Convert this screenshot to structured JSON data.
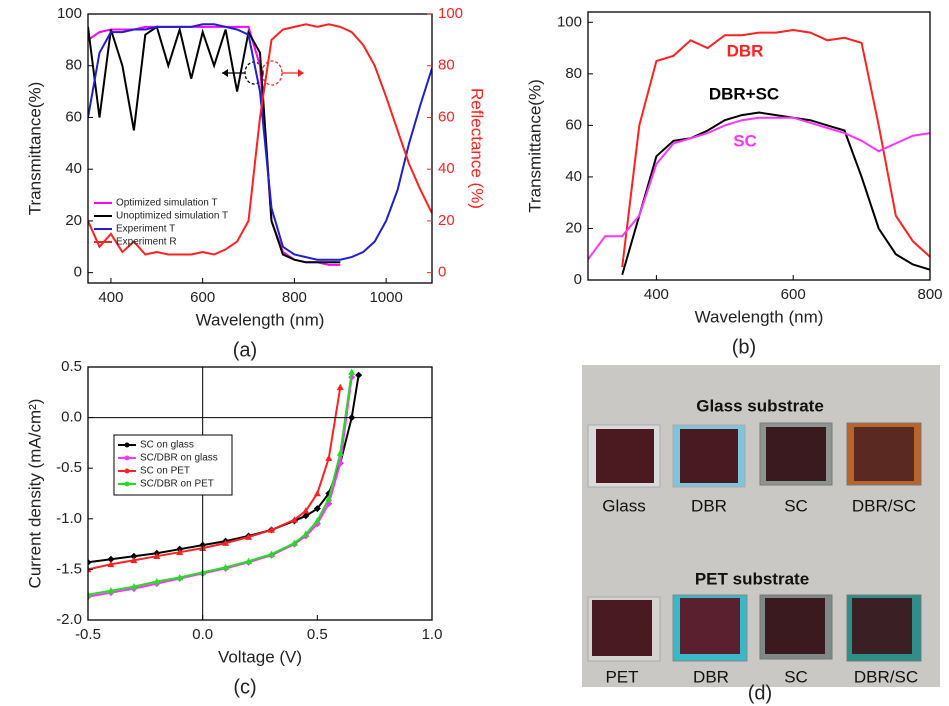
{
  "chart_data": [
    {
      "type": "line",
      "panel_label": "(a)",
      "x_label": "Wavelength (nm)",
      "y_label": "Transmittance(%)",
      "y2_label": "Reflectance (%)",
      "x": [
        350,
        375,
        400,
        425,
        450,
        475,
        500,
        525,
        550,
        575,
        600,
        625,
        650,
        675,
        700,
        725,
        750,
        775,
        800,
        825,
        850,
        875,
        900,
        925,
        950,
        975,
        1000,
        1025,
        1050,
        1075,
        1100
      ],
      "series": [
        {
          "name": "Optimized simulation T",
          "color": "#ff00ff",
          "values": [
            90,
            93,
            94,
            94,
            94,
            95,
            95,
            95,
            95,
            95,
            95,
            95,
            95,
            95,
            95,
            80,
            20,
            8,
            5,
            4,
            4,
            3,
            3,
            null,
            null,
            null,
            null,
            null,
            null,
            null,
            null
          ]
        },
        {
          "name": "Unoptimized simulation T",
          "color": "#000000",
          "values": [
            95,
            60,
            94,
            80,
            55,
            92,
            95,
            80,
            94,
            75,
            93,
            80,
            94,
            70,
            93,
            85,
            20,
            7,
            5,
            4,
            4,
            4,
            4,
            null,
            null,
            null,
            null,
            null,
            null,
            null,
            null
          ]
        },
        {
          "name": "Experiment T",
          "color": "#1f1fcf",
          "values": [
            60,
            85,
            93,
            93,
            94,
            94,
            95,
            95,
            95,
            95,
            96,
            96,
            95,
            94,
            92,
            70,
            25,
            10,
            7,
            6,
            5,
            5,
            5,
            6,
            8,
            12,
            20,
            32,
            50,
            65,
            79
          ]
        },
        {
          "name": "Experiment R",
          "color": "#ff2020",
          "axis": "y2",
          "values": [
            20,
            10,
            15,
            8,
            12,
            7,
            8,
            7,
            7,
            7,
            8,
            7,
            9,
            12,
            20,
            60,
            90,
            94,
            95,
            96,
            95,
            96,
            95,
            93,
            88,
            80,
            68,
            55,
            42,
            32,
            23
          ]
        }
      ],
      "xlim": [
        350,
        1100
      ],
      "xticks": [
        400,
        600,
        800,
        1000
      ],
      "ylim": [
        -4,
        100
      ],
      "yticks": [
        0,
        20,
        40,
        60,
        80,
        100
      ],
      "y2lim": [
        -4,
        100
      ],
      "y2ticks": [
        0,
        20,
        40,
        60,
        80,
        100
      ],
      "legend": "lower left"
    },
    {
      "type": "line",
      "panel_label": "(b)",
      "x_label": "Wavelength (nm)",
      "y_label": "Transmittance(%)",
      "x": [
        300,
        325,
        350,
        375,
        400,
        425,
        450,
        475,
        500,
        525,
        550,
        575,
        600,
        625,
        650,
        675,
        700,
        725,
        750,
        775,
        800
      ],
      "series": [
        {
          "name": "DBR",
          "color": "#ff2020",
          "values": [
            null,
            null,
            5,
            60,
            85,
            87,
            93,
            90,
            95,
            95,
            96,
            96,
            97,
            96,
            93,
            94,
            92,
            60,
            25,
            15,
            9
          ]
        },
        {
          "name": "DBR+SC",
          "color": "#000000",
          "values": [
            null,
            null,
            2,
            25,
            48,
            54,
            55,
            58,
            62,
            64,
            65,
            64,
            63,
            62,
            60,
            58,
            40,
            20,
            10,
            6,
            4
          ]
        },
        {
          "name": "SC",
          "color": "#ff33ff",
          "values": [
            8,
            17,
            17,
            25,
            45,
            53,
            55,
            57,
            60,
            62,
            63,
            63,
            63,
            61,
            59,
            57,
            54,
            50,
            53,
            56,
            57
          ]
        }
      ],
      "xlim": [
        300,
        800
      ],
      "xticks": [
        400,
        600,
        800
      ],
      "ylim": [
        0,
        104
      ],
      "yticks": [
        0,
        20,
        40,
        60,
        80,
        100
      ],
      "annotations": "series-names"
    },
    {
      "type": "line",
      "panel_label": "(c)",
      "x_label": "Voltage (V)",
      "y_label": "Current density (mA/cm²)",
      "x": [
        -0.5,
        -0.4,
        -0.3,
        -0.2,
        -0.1,
        0,
        0.1,
        0.2,
        0.3,
        0.4,
        0.45,
        0.5,
        0.55,
        0.6,
        0.65,
        0.68
      ],
      "series": [
        {
          "name": "SC on glass",
          "color": "#000000",
          "marker": "diamond",
          "values": [
            -1.43,
            -1.4,
            -1.37,
            -1.34,
            -1.3,
            -1.26,
            -1.22,
            -1.17,
            -1.11,
            -1.02,
            -0.97,
            -0.9,
            -0.75,
            -0.45,
            0.0,
            0.42
          ]
        },
        {
          "name": "SC/DBR on glass",
          "color": "#ff33ff",
          "marker": "diamond",
          "values": [
            -1.77,
            -1.73,
            -1.69,
            -1.64,
            -1.59,
            -1.54,
            -1.49,
            -1.43,
            -1.36,
            -1.25,
            -1.17,
            -1.05,
            -0.85,
            -0.45,
            0.4,
            null
          ]
        },
        {
          "name": "SC on PET",
          "color": "#ff2020",
          "marker": "triangle",
          "values": [
            -1.5,
            -1.45,
            -1.41,
            -1.37,
            -1.33,
            -1.29,
            -1.24,
            -1.18,
            -1.11,
            -1.01,
            -0.92,
            -0.75,
            -0.4,
            0.3,
            null,
            null
          ]
        },
        {
          "name": "SC/DBR on PET",
          "color": "#22dd22",
          "marker": "triangle",
          "values": [
            -1.75,
            -1.71,
            -1.67,
            -1.62,
            -1.58,
            -1.53,
            -1.48,
            -1.42,
            -1.35,
            -1.24,
            -1.15,
            -1.02,
            -0.8,
            -0.35,
            0.45,
            null
          ]
        }
      ],
      "xlim": [
        -0.5,
        1.0
      ],
      "xticks": [
        -0.5,
        {
          "value": 0,
          "label": "0.0"
        },
        0.5,
        {
          "value": 1,
          "label": "1.0"
        }
      ],
      "ylim": [
        -2,
        0.5
      ],
      "yticks": [
        0.5,
        {
          "value": 0,
          "label": "0.0"
        },
        -0.5,
        {
          "value": -1,
          "label": "-1.0"
        },
        -1.5,
        {
          "value": -2,
          "label": "-2.0"
        }
      ],
      "legend": "upper left",
      "crosshair": true
    }
  ],
  "photo": {
    "panel_label": "(d)",
    "top_title": "Glass substrate",
    "top_labels": [
      "Glass",
      "DBR",
      "SC",
      "DBR/SC"
    ],
    "bottom_title": "PET substrate",
    "bottom_labels": [
      "PET",
      "DBR",
      "SC",
      "DBR/SC"
    ]
  }
}
